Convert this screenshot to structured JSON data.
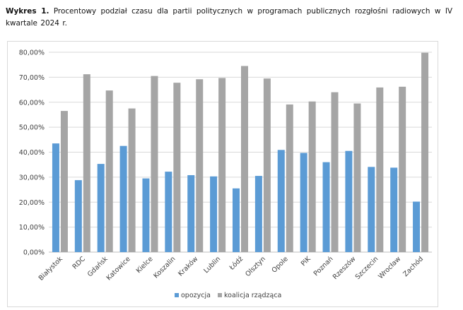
{
  "caption": {
    "label": "Wykres 1.",
    "text": "Procentowy podział czasu dla partii politycznych w programach publicznych rozgłośni radiowych w IV kwartale 2024 r."
  },
  "chart_data": {
    "type": "bar",
    "title": "",
    "xlabel": "",
    "ylabel": "",
    "ylim": [
      0,
      80
    ],
    "y_ticks": [
      "0,00%",
      "10,00%",
      "20,00%",
      "30,00%",
      "40,00%",
      "50,00%",
      "60,00%",
      "70,00%",
      "80,00%"
    ],
    "grid": true,
    "legend": "bottom",
    "categories": [
      "Białystok",
      "RDC",
      "Gdańsk",
      "Katowice",
      "Kielce",
      "Koszalin",
      "Kraków",
      "Lublin",
      "Łódź",
      "Olsztyn",
      "Opole",
      "PiK",
      "Poznań",
      "Rzeszów",
      "Szczecin",
      "Wrocław",
      "Zachód"
    ],
    "series": [
      {
        "name": "opozycja",
        "color": "#5b9bd5",
        "values": [
          43.5,
          28.8,
          35.3,
          42.5,
          29.5,
          32.2,
          30.8,
          30.3,
          25.5,
          30.5,
          40.9,
          39.7,
          36.0,
          40.5,
          34.1,
          33.8,
          20.2
        ]
      },
      {
        "name": "koalicja rządząca",
        "color": "#a5a5a5",
        "values": [
          56.5,
          71.2,
          64.7,
          57.5,
          70.5,
          67.8,
          69.2,
          69.7,
          74.5,
          69.5,
          59.1,
          60.3,
          64.0,
          59.5,
          65.9,
          66.2,
          79.8
        ]
      }
    ]
  }
}
